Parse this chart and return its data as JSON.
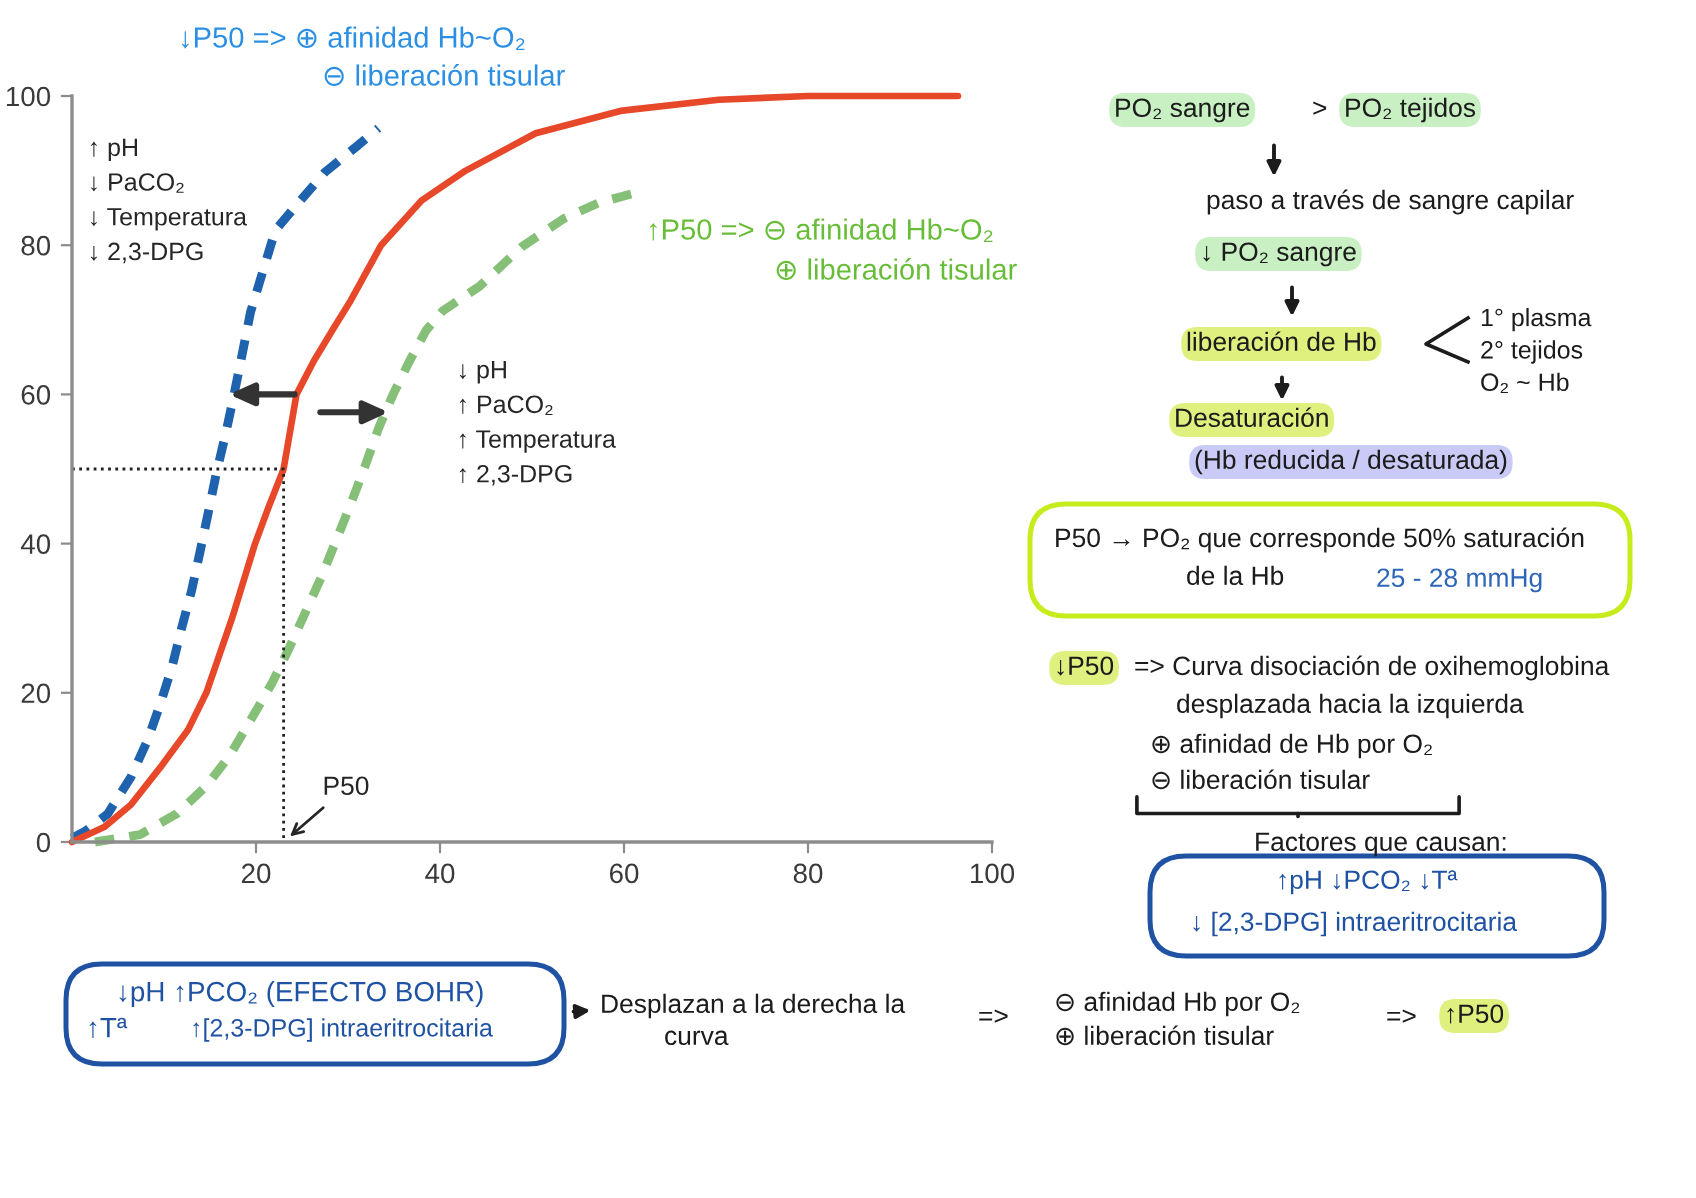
{
  "chart_data": {
    "type": "line",
    "xlim": [
      0,
      100
    ],
    "ylim": [
      0,
      100
    ],
    "xticks": [
      20,
      40,
      60,
      80,
      100
    ],
    "yticks": [
      0,
      20,
      40,
      60,
      80,
      100
    ],
    "grid": false,
    "series": [
      {
        "color": "#1f62ad",
        "line_style": "dashed",
        "x": [
          0,
          1.5,
          3.9,
          6.4,
          8.2,
          9.6,
          10.9,
          11.9,
          13.0,
          13.9,
          14.8,
          15.7,
          16.7,
          17.6,
          18.5,
          19.4,
          20.6,
          22.1,
          24.5,
          27.5,
          30.9,
          33.3
        ],
        "values": [
          0.5,
          1.5,
          3.8,
          8.7,
          13.6,
          18.5,
          23.6,
          28.6,
          33.7,
          38.8,
          44.1,
          49.5,
          54.7,
          59.9,
          65.4,
          71,
          75.9,
          82,
          85.5,
          89.8,
          93.2,
          95.7
        ]
      },
      {
        "color": "#86bf78",
        "line_style": "dashed",
        "x": [
          2.5,
          7.4,
          11.4,
          14.6,
          17.1,
          19.4,
          21.7,
          23.5,
          25.3,
          27.1,
          28.7,
          30.3,
          31.8,
          33.3,
          34.9,
          36.7,
          38.5,
          40.3,
          44.3,
          48.9,
          53.5,
          57.3,
          61.5
        ],
        "values": [
          0,
          1,
          3.8,
          7.5,
          11.5,
          16.3,
          21.2,
          25.7,
          30.6,
          35.5,
          40.4,
          45.3,
          50.2,
          55.4,
          60,
          64.5,
          68.6,
          71.2,
          74.5,
          79.8,
          83.6,
          85.7,
          87.1
        ]
      },
      {
        "color": "#e8482a",
        "line_style": "solid",
        "x": [
          0,
          3.5,
          6.4,
          9.6,
          12.6,
          14.6,
          17.4,
          19.9,
          21.4,
          23,
          24.4,
          26.3,
          28.5,
          30.3,
          33.6,
          38,
          42.8,
          50.4,
          59.6,
          70.3,
          80,
          96.3
        ],
        "values": [
          0,
          2,
          5,
          10,
          15,
          20,
          30,
          40,
          45,
          50,
          60,
          64.5,
          69,
          72.6,
          80,
          86,
          90,
          95,
          98,
          99.5,
          100,
          100
        ]
      },
      {
        "color": "#222222",
        "line_style": "dotted",
        "x": [
          0,
          23,
          23
        ],
        "values": [
          50,
          50,
          0
        ]
      }
    ],
    "annotations": [
      "↑ pH\n↓ PaCO₂\n↓ Temperatura\n↓ 2,3-DPG",
      "↓ pH\n↑ PaCO₂\n↑ Temperatura\n↑ 2,3-DPG",
      {
        "text": "P50",
        "x": 23,
        "y": 0
      },
      "↓P50 => ⊕ afinidad Hb~O₂",
      "⊖ liberación tisular",
      "↑P50 => ⊖ afinidad Hb~O₂",
      "⊕ liberación tisular",
      "PO₂ sangre",
      ">",
      "PO₂ tejidos",
      "paso a través de sangre capilar",
      "↓ PO₂ sangre",
      "liberación de Hb",
      "1° plasma\n2° tejidos\nO₂ ~ Hb",
      "Desaturación",
      "(Hb reducida / desaturada)",
      "P50 → PO₂ que corresponde 50% saturación",
      "de la Hb",
      "25 - 28 mmHg",
      "↓P50",
      "=> Curva disociación de oxihemoglobina",
      "desplazada hacia la izquierda",
      "⊕ afinidad de Hb por O₂",
      "⊖ liberación tisular",
      "Factores que causan:",
      "↑pH ↓PCO₂ ↓Tª",
      "↓ [2,3-DPG] intraeritrocitaria",
      "↓pH ↑PCO₂ (EFECTO BOHR)",
      "↑Tª",
      "↑[2,3-DPG] intraeritrocitaria",
      "Desplazan a la derecha la",
      "curva",
      "=>",
      "⊖ afinidad Hb por O₂",
      "⊕ liberación tisular",
      "=>",
      "↑P50"
    ]
  }
}
